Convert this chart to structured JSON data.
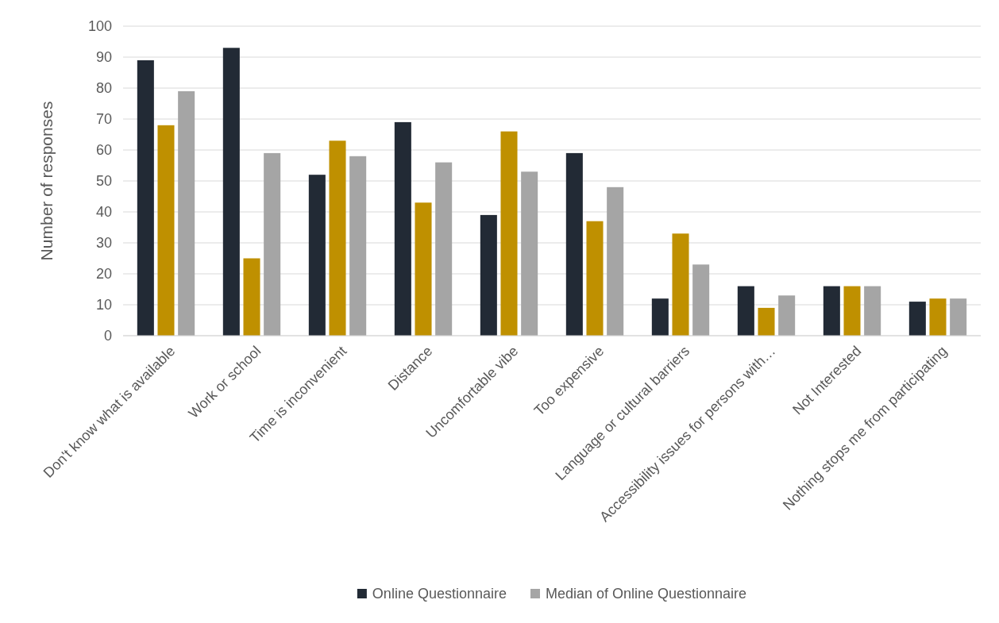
{
  "chart_data": {
    "type": "bar",
    "ylabel": "Number of responses",
    "categories": [
      "Don't know what is available",
      "Work or school",
      "Time is inconvenient",
      "Distance",
      "Uncomfortable vibe",
      "Too expensive",
      "Language or cultural barriers",
      "Accessibility issues for persons with…",
      "Not Interested",
      "Nothing stops me from participating"
    ],
    "series": [
      {
        "name": "Online Questionnaire",
        "color": "#222a35",
        "values": [
          89,
          93,
          52,
          69,
          39,
          59,
          12,
          16,
          16,
          11
        ]
      },
      {
        "color": "#bf9000",
        "values": [
          68,
          25,
          63,
          43,
          66,
          37,
          33,
          9,
          16,
          12
        ]
      },
      {
        "name": "Median of Online Questionnaire",
        "color": "#a5a5a5",
        "values": [
          79,
          59,
          58,
          56,
          53,
          48,
          23,
          13,
          16,
          12
        ]
      }
    ],
    "ylim": [
      0,
      100
    ],
    "yticks": [
      0,
      10,
      20,
      30,
      40,
      50,
      60,
      70,
      80,
      90,
      100
    ],
    "grid": "y",
    "legend": "bottom"
  }
}
